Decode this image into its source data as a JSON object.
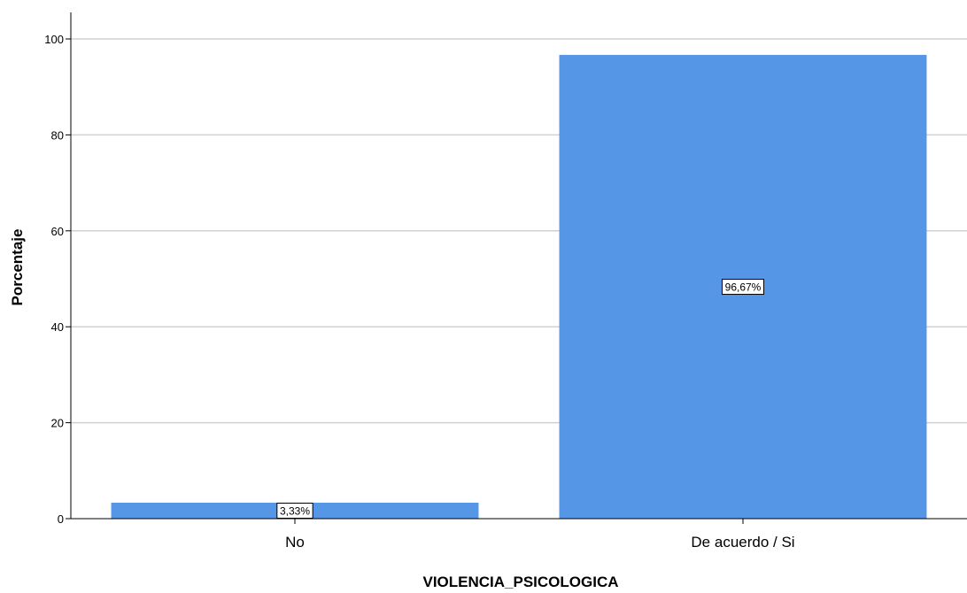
{
  "chart_data": {
    "type": "bar",
    "categories": [
      "No",
      "De acuerdo / Si"
    ],
    "values": [
      3.33,
      96.67
    ],
    "data_labels": [
      "3,33%",
      "96,67%"
    ],
    "xlabel": "VIOLENCIA_PSICOLOGICA",
    "ylabel": "Porcentaje",
    "ylim": [
      0,
      100
    ],
    "yticks": [
      0,
      20,
      40,
      60,
      80,
      100
    ],
    "grid": true,
    "bar_color": "#5596e6",
    "grid_color": "#d0d0d0",
    "axis_color": "#000000"
  }
}
